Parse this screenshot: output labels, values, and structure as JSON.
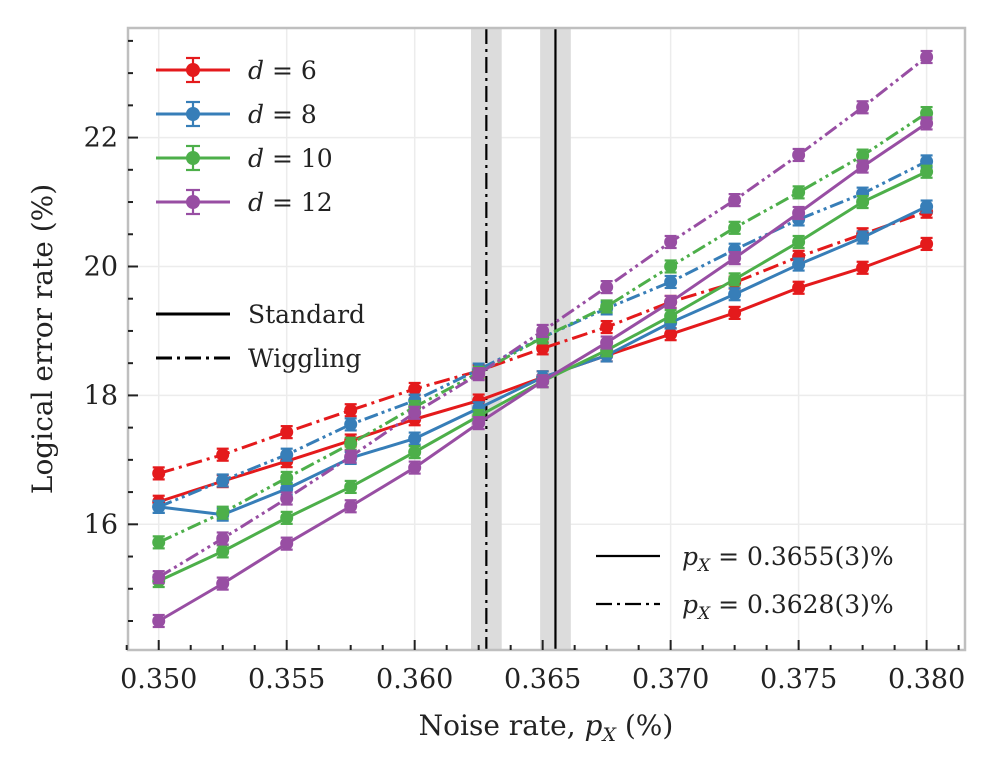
{
  "chart_data": {
    "type": "line",
    "xlabel": "Noise rate, p_X (%)",
    "ylabel": "Logical error rate (%)",
    "xlim": [
      0.3488,
      0.3815
    ],
    "ylim": [
      14.05,
      23.7
    ],
    "x_ticks": [
      "0.350",
      "0.355",
      "0.360",
      "0.365",
      "0.370",
      "0.375",
      "0.380"
    ],
    "x_tick_values": [
      0.35,
      0.355,
      0.36,
      0.365,
      0.37,
      0.375,
      0.38
    ],
    "y_ticks": [
      "16",
      "18",
      "20",
      "22"
    ],
    "y_tick_values": [
      16,
      18,
      20,
      22
    ],
    "grid": true,
    "x": [
      0.35,
      0.3525,
      0.355,
      0.3575,
      0.36,
      0.3625,
      0.365,
      0.3675,
      0.37,
      0.3725,
      0.375,
      0.3775,
      0.38
    ],
    "series": [
      {
        "name": "d = 6",
        "distance": "6",
        "variant": "Standard",
        "color": "#e41a1c",
        "values": [
          16.35,
          16.67,
          16.98,
          17.3,
          17.63,
          17.92,
          18.28,
          18.62,
          18.95,
          19.28,
          19.67,
          19.98,
          20.35
        ]
      },
      {
        "name": "d = 6",
        "distance": "6",
        "variant": "Wiggling",
        "color": "#e41a1c",
        "values": [
          16.79,
          17.08,
          17.43,
          17.77,
          18.1,
          18.38,
          18.73,
          19.06,
          19.45,
          19.75,
          20.15,
          20.5,
          20.85
        ]
      },
      {
        "name": "d = 8",
        "distance": "8",
        "variant": "Standard",
        "color": "#377eb8",
        "values": [
          16.27,
          16.15,
          16.55,
          17.03,
          17.33,
          17.8,
          18.28,
          18.62,
          19.13,
          19.57,
          20.03,
          20.45,
          20.93
        ]
      },
      {
        "name": "d = 8",
        "distance": "8",
        "variant": "Wiggling",
        "color": "#377eb8",
        "values": [
          16.27,
          16.68,
          17.08,
          17.55,
          17.92,
          18.4,
          18.9,
          19.35,
          19.76,
          20.26,
          20.73,
          21.13,
          21.63
        ]
      },
      {
        "name": "d = 10",
        "distance": "10",
        "variant": "Standard",
        "color": "#4daf4a",
        "values": [
          15.12,
          15.58,
          16.1,
          16.58,
          17.12,
          17.68,
          18.22,
          18.7,
          19.23,
          19.8,
          20.38,
          21.0,
          21.47
        ]
      },
      {
        "name": "d = 10",
        "distance": "10",
        "variant": "Wiggling",
        "color": "#4daf4a",
        "values": [
          15.72,
          16.18,
          16.72,
          17.25,
          17.82,
          18.35,
          18.9,
          19.38,
          20.0,
          20.6,
          21.15,
          21.72,
          22.38
        ]
      },
      {
        "name": "d = 12",
        "distance": "12",
        "variant": "Standard",
        "color": "#984ea3",
        "values": [
          14.5,
          15.08,
          15.7,
          16.28,
          16.88,
          17.57,
          18.22,
          18.82,
          19.45,
          20.13,
          20.83,
          21.55,
          22.22
        ]
      },
      {
        "name": "d = 12",
        "distance": "12",
        "variant": "Wiggling",
        "color": "#984ea3",
        "values": [
          15.18,
          15.78,
          16.4,
          17.05,
          17.73,
          18.33,
          19.0,
          19.68,
          20.38,
          21.03,
          21.73,
          22.47,
          23.25
        ]
      }
    ],
    "threshold_lines": [
      {
        "x": 0.3655,
        "x_err": 0.0003,
        "style": "solid",
        "label_prefix": "p",
        "label_sub": "X",
        "label_value": " = 0.3655(3)%"
      },
      {
        "x": 0.3628,
        "x_err": 0.0003,
        "style": "dashdot",
        "label_prefix": "p",
        "label_sub": "X",
        "label_value": " = 0.3628(3)%"
      }
    ],
    "legend_distance": {
      "position": "top-left",
      "var": "d",
      "entries": [
        "6",
        "8",
        "10",
        "12"
      ]
    },
    "legend_style": {
      "position": "middle-left",
      "entries": [
        "Standard",
        "Wiggling"
      ]
    },
    "legend_threshold": {
      "position": "bottom-right"
    }
  }
}
